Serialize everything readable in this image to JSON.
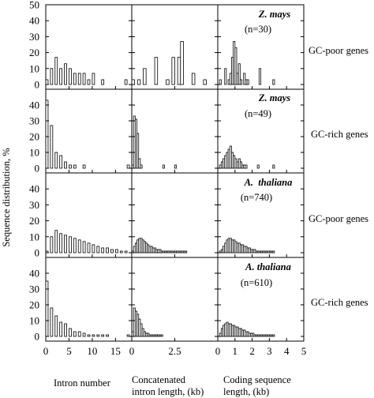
{
  "chart_data": {
    "type": "bar",
    "ylabel": "Sequence distribution, %",
    "ylim": [
      0,
      50
    ],
    "yticks": [
      "0",
      "10",
      "20",
      "30",
      "40",
      "50"
    ],
    "row_labels": [
      "GC-poor genes",
      "GC-rich genes",
      "GC-poor genes",
      "GC-rich genes"
    ],
    "species": [
      {
        "name": "Z. mays",
        "n": "(n=30)"
      },
      {
        "name": "Z. mays",
        "n": "(n=49)"
      },
      {
        "name": "A.  thaliana",
        "n": "(n=740)"
      },
      {
        "name": "A. thaliana",
        "n": "(n=610)"
      }
    ],
    "columns": [
      {
        "xlabel_lines": [
          "Intron number"
        ],
        "xticks": [
          "0",
          "5",
          "10",
          "15"
        ],
        "xlim": [
          0,
          18.5
        ],
        "tick_values": [
          0,
          5,
          10,
          15
        ]
      },
      {
        "xlabel_lines": [
          "Concatenated",
          "intron length, (kb)"
        ],
        "xticks": [
          "0",
          "2.5"
        ],
        "xlim": [
          0,
          5
        ],
        "tick_values": [
          0,
          2.5
        ]
      },
      {
        "xlabel_lines": [
          "Coding sequence",
          "length, (kb)"
        ],
        "xticks": [
          "0",
          "1",
          "2",
          "3",
          "4",
          "5"
        ],
        "xlim": [
          0,
          5
        ],
        "tick_values": [
          0,
          1,
          2,
          3,
          4,
          5
        ]
      }
    ],
    "panels": [
      {
        "row": 0,
        "col": 0,
        "bin_start": 0,
        "bin_width": 0.5,
        "values": [
          3,
          0,
          10,
          0,
          17,
          0,
          10,
          0,
          13,
          0,
          10,
          0,
          7,
          0,
          7,
          0,
          7,
          0,
          3,
          0,
          7,
          0,
          0,
          0,
          3,
          0,
          0,
          0,
          0,
          0,
          0,
          0,
          0,
          0,
          3
        ]
      },
      {
        "row": 0,
        "col": 1,
        "bin_start": 0,
        "bin_width": 0.1667,
        "values": [
          3,
          0,
          3,
          0,
          10,
          0,
          0,
          0,
          17,
          0,
          0,
          0,
          3,
          0,
          17,
          0,
          17,
          27,
          0,
          0,
          0,
          7,
          0,
          0,
          0,
          3
        ]
      },
      {
        "row": 0,
        "col": 2,
        "bin_start": 0.1,
        "bin_width": 0.1,
        "values": [
          3,
          0,
          0,
          10,
          0,
          3,
          7,
          17,
          27,
          23,
          7,
          13,
          3,
          0,
          7,
          3,
          3,
          0,
          0,
          0,
          0,
          0,
          0,
          10,
          0,
          0,
          0,
          0,
          0,
          0,
          0,
          3
        ]
      },
      {
        "row": 1,
        "col": 0,
        "bin_start": 0,
        "bin_width": 0.5,
        "values": [
          43,
          0,
          27,
          0,
          10,
          0,
          8,
          0,
          4,
          0,
          2,
          0,
          2,
          0,
          0,
          0,
          2,
          0,
          0,
          0,
          0,
          0,
          0,
          0,
          0,
          0,
          0,
          0,
          0,
          0,
          0,
          0,
          0,
          0,
          0,
          2
        ]
      },
      {
        "row": 1,
        "col": 1,
        "bin_start": 0,
        "bin_width": 0.1,
        "values": [
          2,
          33,
          31,
          22,
          6,
          2,
          0,
          0,
          0,
          0,
          0,
          0,
          0,
          0,
          0,
          0,
          0,
          0,
          2,
          0,
          0,
          0,
          0,
          0,
          0,
          2
        ]
      },
      {
        "row": 1,
        "col": 2,
        "bin_start": 0.1,
        "bin_width": 0.1,
        "values": [
          2,
          4,
          6,
          8,
          10,
          12,
          14,
          10,
          8,
          6,
          4,
          6,
          4,
          2,
          2,
          2,
          0,
          0,
          0,
          0,
          0,
          0,
          2,
          0,
          0,
          0,
          0,
          0,
          0,
          0,
          0,
          2
        ]
      },
      {
        "row": 2,
        "col": 0,
        "bin_start": 0,
        "bin_width": 0.5,
        "values": [
          1,
          0,
          10,
          0,
          14,
          0,
          12,
          0,
          11,
          0,
          10,
          0,
          9,
          0,
          8,
          0,
          7,
          0,
          6,
          0,
          5,
          0,
          4,
          0,
          3,
          0,
          3,
          0,
          2,
          0,
          2,
          0,
          1,
          0,
          1
        ]
      },
      {
        "row": 2,
        "col": 1,
        "bin_start": 0,
        "bin_width": 0.1,
        "values": [
          1,
          4,
          6,
          8,
          9,
          9,
          8,
          7,
          6,
          5,
          4,
          4,
          3,
          3,
          2,
          2,
          2,
          1,
          1,
          1,
          1,
          1,
          1,
          1,
          1,
          1,
          1,
          1,
          1,
          1,
          1,
          1
        ]
      },
      {
        "row": 2,
        "col": 2,
        "bin_start": 0.1,
        "bin_width": 0.1,
        "values": [
          1,
          2,
          4,
          6,
          8,
          9,
          9,
          8,
          8,
          7,
          6,
          6,
          5,
          5,
          4,
          4,
          3,
          3,
          2,
          2,
          2,
          1,
          1,
          1,
          1,
          1,
          1,
          1,
          1,
          1,
          1,
          1
        ]
      },
      {
        "row": 3,
        "col": 0,
        "bin_start": 0,
        "bin_width": 0.5,
        "values": [
          35,
          0,
          18,
          0,
          13,
          0,
          9,
          0,
          8,
          0,
          5,
          0,
          3,
          0,
          3,
          0,
          2,
          0,
          1,
          0,
          1,
          0,
          1,
          0,
          1,
          0,
          1,
          0,
          0,
          0,
          0,
          0,
          0,
          0,
          0,
          1
        ]
      },
      {
        "row": 3,
        "col": 1,
        "bin_start": 0,
        "bin_width": 0.1,
        "values": [
          3,
          18,
          16,
          14,
          11,
          8,
          5,
          3,
          2,
          2,
          1,
          1,
          1,
          1,
          1,
          1,
          1,
          1
        ]
      },
      {
        "row": 3,
        "col": 2,
        "bin_start": 0.1,
        "bin_width": 0.1,
        "values": [
          2,
          5,
          7,
          8,
          9,
          8,
          8,
          7,
          7,
          6,
          6,
          5,
          5,
          4,
          4,
          3,
          3,
          2,
          2,
          2,
          1,
          1,
          1,
          1,
          1,
          1,
          1,
          1,
          1,
          1,
          1,
          1
        ]
      }
    ]
  }
}
